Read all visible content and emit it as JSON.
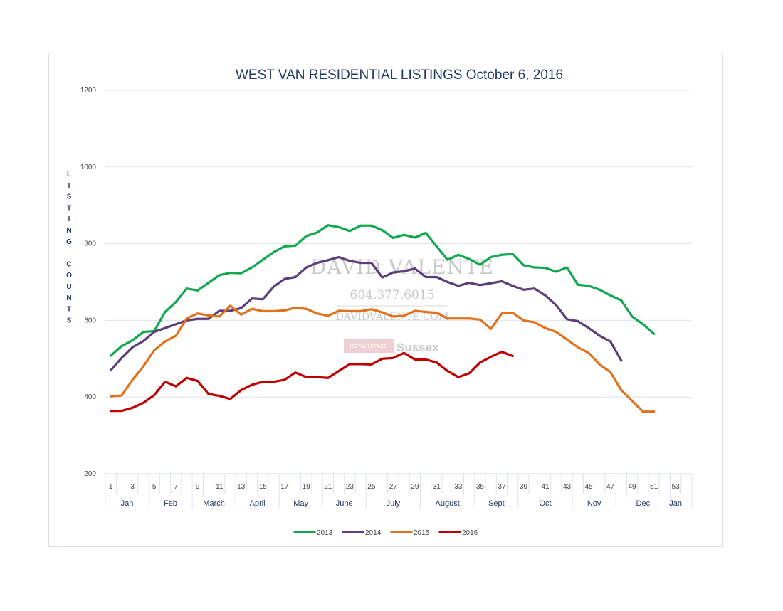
{
  "chart_data": {
    "type": "line",
    "title": "WEST VAN RESIDENTIAL LISTINGS October 6, 2016",
    "ylabel": "LISTING COUNTS",
    "ylabel_lines": [
      "L",
      "I",
      "S",
      "T",
      "I",
      "N",
      "G",
      "",
      "C",
      "O",
      "U",
      "N",
      "T",
      "S"
    ],
    "ylim": [
      200,
      1200
    ],
    "yticks": [
      200,
      400,
      600,
      800,
      1000,
      1200
    ],
    "xlim": [
      1,
      54
    ],
    "xticks": [
      "1",
      "3",
      "5",
      "7",
      "9",
      "11",
      "13",
      "15",
      "17",
      "19",
      "21",
      "23",
      "25",
      "27",
      "29",
      "31",
      "33",
      "35",
      "37",
      "39",
      "41",
      "43",
      "45",
      "47",
      "49",
      "51",
      "53"
    ],
    "months": [
      {
        "label": "Jan",
        "start": 1,
        "end": 5
      },
      {
        "label": "Feb",
        "start": 5,
        "end": 9
      },
      {
        "label": "March",
        "start": 9,
        "end": 13
      },
      {
        "label": "April",
        "start": 13,
        "end": 17
      },
      {
        "label": "May",
        "start": 17,
        "end": 21
      },
      {
        "label": "June",
        "start": 21,
        "end": 25
      },
      {
        "label": "July",
        "start": 25,
        "end": 30
      },
      {
        "label": "August",
        "start": 30,
        "end": 35
      },
      {
        "label": "Sept",
        "start": 35,
        "end": 39
      },
      {
        "label": "Oct",
        "start": 39,
        "end": 44
      },
      {
        "label": "Nov",
        "start": 44,
        "end": 48
      },
      {
        "label": "Dec",
        "start": 48,
        "end": 53
      },
      {
        "label": "Jan",
        "start": 53,
        "end": 54
      }
    ],
    "grid": true,
    "legend_position": "bottom",
    "series": [
      {
        "name": "2013",
        "color": "#11a84f",
        "x_start": 1,
        "values": [
          508,
          533,
          548,
          570,
          572,
          622,
          648,
          683,
          678,
          698,
          718,
          724,
          723,
          738,
          758,
          778,
          793,
          795,
          820,
          829,
          848,
          843,
          833,
          847,
          847,
          835,
          815,
          823,
          816,
          828,
          793,
          758,
          771,
          760,
          745,
          765,
          771,
          773,
          744,
          738,
          737,
          727,
          738,
          693,
          690,
          680,
          665,
          652,
          610,
          590,
          565
        ]
      },
      {
        "name": "2014",
        "color": "#5b3f7a",
        "x_start": 1,
        "values": [
          470,
          502,
          530,
          546,
          570,
          580,
          590,
          600,
          604,
          604,
          625,
          625,
          632,
          657,
          655,
          688,
          708,
          713,
          738,
          750,
          757,
          765,
          755,
          750,
          750,
          712,
          725,
          728,
          735,
          713,
          713,
          700,
          690,
          698,
          692,
          697,
          702,
          690,
          680,
          683,
          665,
          640,
          603,
          598,
          580,
          560,
          545,
          495
        ]
      },
      {
        "name": "2015",
        "color": "#e1721a",
        "x_start": 1,
        "values": [
          402,
          404,
          445,
          480,
          522,
          545,
          560,
          605,
          618,
          613,
          610,
          638,
          615,
          630,
          624,
          624,
          626,
          633,
          630,
          618,
          612,
          625,
          624,
          624,
          629,
          621,
          610,
          612,
          625,
          622,
          620,
          605,
          605,
          605,
          602,
          578,
          618,
          620,
          600,
          595,
          580,
          570,
          550,
          530,
          515,
          485,
          465,
          418,
          390,
          362,
          362
        ]
      },
      {
        "name": "2016",
        "color": "#c00000",
        "x_start": 1,
        "values": [
          364,
          364,
          372,
          385,
          405,
          440,
          428,
          450,
          442,
          408,
          403,
          395,
          418,
          432,
          440,
          440,
          445,
          464,
          452,
          452,
          450,
          468,
          486,
          486,
          485,
          500,
          502,
          515,
          498,
          498,
          490,
          468,
          452,
          462,
          490,
          505,
          518,
          507
        ]
      }
    ]
  },
  "legend": {
    "items": [
      {
        "label": "2013",
        "color": "#11a84f"
      },
      {
        "label": "2014",
        "color": "#5b3f7a"
      },
      {
        "label": "2015",
        "color": "#e1721a"
      },
      {
        "label": "2016",
        "color": "#c00000"
      }
    ]
  },
  "watermark": {
    "name": "DAVID VALENTE",
    "phone": "604.377.6015",
    "website": "DAVIDVALENTE.COM",
    "brand_small": "ROYAL LEPAGE",
    "brand_large": "Sussex"
  }
}
